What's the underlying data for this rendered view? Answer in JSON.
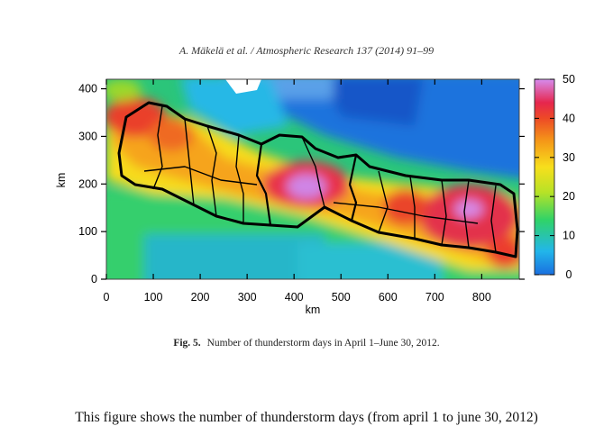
{
  "header": {
    "citation": "A. Mäkelä et al. / Atmospheric Research 137 (2014) 91–99"
  },
  "figure": {
    "label": "Fig. 5.",
    "caption": "Number of thunderstorm days in April 1–June 30, 2012."
  },
  "note": "This figure shows the number of  thunderstorm days (from april 1 to june 30, 2012)",
  "chart_data": {
    "type": "heatmap",
    "xlabel": "km",
    "ylabel": "km",
    "xlim": [
      0,
      880
    ],
    "ylim": [
      0,
      420
    ],
    "xticks": [
      "0",
      "100",
      "200",
      "300",
      "400",
      "500",
      "600",
      "700",
      "800"
    ],
    "yticks": [
      "0",
      "100",
      "200",
      "300",
      "400"
    ],
    "colorbar": {
      "range": [
        0,
        50
      ],
      "ticks": [
        "0",
        "10",
        "20",
        "30",
        "40",
        "50"
      ],
      "colors": [
        "#1f7ae0",
        "#24b8e8",
        "#2fd36a",
        "#b3e026",
        "#f7df1c",
        "#f6a219",
        "#ed5025",
        "#e8274b",
        "#c97ad8",
        "#d98df0"
      ]
    },
    "regions": [
      {
        "name": "high_center",
        "x": 415,
        "y": 200,
        "value": 48
      },
      {
        "name": "high_east",
        "x": 780,
        "y": 150,
        "value": 46
      },
      {
        "name": "west_peak",
        "x": 60,
        "y": 350,
        "value": 40
      },
      {
        "name": "north_low",
        "x": 560,
        "y": 350,
        "value": 6
      }
    ]
  }
}
